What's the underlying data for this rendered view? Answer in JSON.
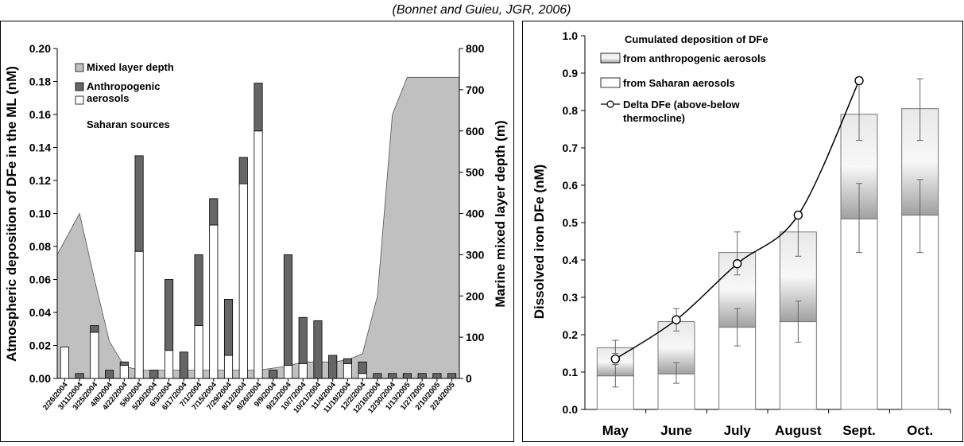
{
  "citation": "(Bonnet and Guieu, JGR, 2006)",
  "chart_data": [
    {
      "type": "bar",
      "ylabel": "Atmospheric deposition of DFe in the ML (nM)",
      "ylabel2": "Marine mixed layer depth (m)",
      "ylim": [
        0,
        0.2
      ],
      "yticks": [
        "0.00",
        "0.02",
        "0.04",
        "0.06",
        "0.08",
        "0.10",
        "0.12",
        "0.14",
        "0.16",
        "0.18",
        "0.20"
      ],
      "ylim2": [
        0,
        800
      ],
      "yticks2": [
        "0",
        "100",
        "200",
        "300",
        "400",
        "500",
        "600",
        "700",
        "800"
      ],
      "legend": {
        "mixed_layer": "Mixed layer depth",
        "anthropogenic": "Anthropogenic aerosols",
        "saharan": "Saharan sources"
      },
      "categories": [
        "2/26/2004",
        "3/11/2004",
        "3/25/2004",
        "4/8/2004",
        "4/22/2004",
        "5/6/2004",
        "5/20/2004",
        "6/3/2004",
        "6/17/2004",
        "7/1/2004",
        "7/15/2004",
        "7/29/2004",
        "8/12/2004",
        "8/26/2004",
        "9/9/2004",
        "9/23/2004",
        "10/7/2004",
        "10/21/2004",
        "11/4/2004",
        "11/18/2004",
        "12/2/2004",
        "12/16/2004",
        "12/30/2004",
        "1/13/2005",
        "1/27/2005",
        "2/10/2005",
        "2/24/2005"
      ],
      "xticklabels": [
        "2/26/2004",
        "3/11/2004",
        "3/25/2004",
        "4/8/2004",
        "4/22/2004",
        "5/6/2004",
        "5/20/2004",
        "6/3/2004",
        "6/17/2004",
        "7/1/2004",
        "7/15/2004",
        "7/29/2004",
        "8/12/2004",
        "8/26/2004",
        "9/9/2004",
        "9/23/2004",
        "10/7/2004",
        "10/21/2004",
        "11/4/2004",
        "11/18/2004",
        "12/2/2004",
        "12/16/2004",
        "12/30/2004",
        "1/13/2005",
        "1/27/2005",
        "2/10/2005",
        "2/24/2005"
      ],
      "series": [
        {
          "name": "Saharan sources",
          "color": "#ffffff",
          "values": [
            0.019,
            0.0,
            0.028,
            0.0,
            0.008,
            0.077,
            0.0,
            0.017,
            0.0,
            0.032,
            0.093,
            0.014,
            0.118,
            0.15,
            0.0,
            0.008,
            0.009,
            0.0,
            0.0,
            0.009,
            0.003,
            0.0,
            0.0,
            0.0,
            0.0,
            0.0,
            0.0
          ]
        },
        {
          "name": "Anthropogenic aerosols",
          "color": "#666666",
          "values": [
            0.0,
            0.003,
            0.004,
            0.005,
            0.002,
            0.058,
            0.005,
            0.043,
            0.016,
            0.043,
            0.016,
            0.034,
            0.016,
            0.029,
            0.005,
            0.067,
            0.028,
            0.035,
            0.014,
            0.003,
            0.007,
            0.003,
            0.003,
            0.003,
            0.003,
            0.003,
            0.003
          ]
        },
        {
          "name": "Mixed layer depth",
          "color": "#c0c0c0",
          "values": [
            300,
            400,
            240,
            90,
            30,
            20,
            20,
            20,
            20,
            20,
            20,
            20,
            20,
            20,
            25,
            30,
            40,
            40,
            40,
            45,
            60,
            200,
            640,
            730,
            730,
            730,
            730
          ]
        }
      ]
    },
    {
      "type": "bar",
      "ylabel": "Dissolved iron DFe (nM)",
      "ylim": [
        0,
        1.0
      ],
      "yticks": [
        "0.0",
        "0.1",
        "0.2",
        "0.3",
        "0.4",
        "0.5",
        "0.6",
        "0.7",
        "0.8",
        "0.9",
        "1.0"
      ],
      "categories": [
        "May",
        "June",
        "July",
        "August",
        "Sept.",
        "Oct."
      ],
      "legend": {
        "title": "Cumulated deposition of DFe",
        "anthropogenic": "from anthropogenic aerosols",
        "saharan": "from Saharan aerosols",
        "delta_line1": "Delta DFe (above-below",
        "delta_line2": "thermocline)"
      },
      "series": [
        {
          "name": "from Saharan aerosols",
          "color": "#ffffff",
          "values": [
            0.09,
            0.095,
            0.22,
            0.235,
            0.51,
            0.52
          ],
          "error": [
            [
              0.06,
              0.12
            ],
            [
              0.07,
              0.125
            ],
            [
              0.17,
              0.27
            ],
            [
              0.18,
              0.29
            ],
            [
              0.42,
              0.605
            ],
            [
              0.42,
              0.615
            ]
          ]
        },
        {
          "name": "from anthropogenic aerosols",
          "color": "#b0b0b0",
          "values": [
            0.075,
            0.14,
            0.2,
            0.24,
            0.28,
            0.285
          ],
          "error": [
            [
              0.15,
              0.185
            ],
            [
              0.21,
              0.27
            ],
            [
              0.36,
              0.475
            ],
            [
              0.41,
              0.53
            ],
            [
              0.72,
              0.87
            ],
            [
              0.72,
              0.885
            ]
          ]
        },
        {
          "name": "Delta DFe (above-below thermocline)",
          "color": "#000000",
          "values": [
            0.135,
            0.24,
            0.39,
            0.52,
            0.88,
            null
          ]
        }
      ]
    }
  ]
}
